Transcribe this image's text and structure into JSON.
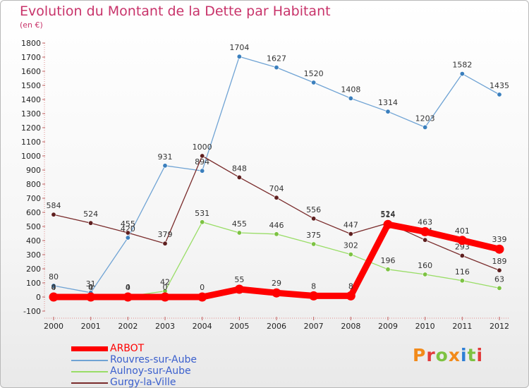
{
  "chart_data": {
    "type": "line",
    "title": "Evolution du Montant de la Dette par Habitant",
    "unit_label": "(en €)",
    "x": [
      2000,
      2001,
      2002,
      2003,
      2004,
      2005,
      2006,
      2007,
      2008,
      2009,
      2010,
      2011,
      2012
    ],
    "ylim": [
      -100,
      1800
    ],
    "yticks": [
      -100,
      0,
      100,
      200,
      300,
      400,
      500,
      600,
      700,
      800,
      900,
      1000,
      1100,
      1200,
      1300,
      1400,
      1500,
      1600,
      1700,
      1800
    ],
    "grid": false,
    "legend_position": "bottom-left",
    "series": [
      {
        "name": "Rouvres-sur-Aube",
        "color": "#6fa3d4",
        "marker_color": "#3b7fbd",
        "values": [
          80,
          31,
          420,
          931,
          894,
          1704,
          1627,
          1520,
          1408,
          1314,
          1203,
          1582,
          1435
        ],
        "labels": [
          "80",
          "31",
          "420",
          "931",
          "894",
          "1704",
          "1627",
          "1520",
          "1408",
          "1314",
          "1203",
          "1582",
          "1435"
        ]
      },
      {
        "name": "Gurgy-la-Ville",
        "color": "#7a2c2c",
        "marker_color": "#5e1f1f",
        "values": [
          584,
          524,
          455,
          379,
          1000,
          848,
          704,
          556,
          447,
          524,
          404,
          293,
          189
        ],
        "labels": [
          "584",
          "524",
          "455",
          "379",
          "1000",
          "848",
          "704",
          "556",
          "447",
          "524",
          "404",
          "293",
          "189"
        ]
      },
      {
        "name": "Aulnoy-sur-Aube",
        "color": "#99dd66",
        "marker_color": "#7cc242",
        "values": [
          4,
          4,
          4,
          42,
          531,
          455,
          446,
          375,
          302,
          196,
          160,
          116,
          63
        ],
        "labels": [
          "4",
          "4",
          "4",
          "42",
          "531",
          "455",
          "446",
          "375",
          "302",
          "196",
          "160",
          "116",
          "63"
        ]
      },
      {
        "name": "ARBOT",
        "color": "#ff0000",
        "marker_color": "#ff0000",
        "values": [
          0,
          0,
          0,
          0,
          0,
          55,
          29,
          8,
          8,
          514,
          463,
          401,
          339
        ],
        "labels": [
          "0",
          "0",
          "0",
          "0",
          "0",
          "55",
          "29",
          "8",
          "8",
          "514",
          "463",
          "401",
          "339"
        ]
      }
    ]
  },
  "legend": {
    "items": [
      {
        "name": "ARBOT",
        "color": "#ff0000",
        "text_color": "#ff0000",
        "weight": "thick"
      },
      {
        "name": "Rouvres-sur-Aube",
        "color": "#6fa3d4",
        "text_color": "#3a5fcd",
        "weight": "thin"
      },
      {
        "name": "Aulnoy-sur-Aube",
        "color": "#99dd66",
        "text_color": "#3a5fcd",
        "weight": "thin"
      },
      {
        "name": "Gurgy-la-Ville",
        "color": "#7a2c2c",
        "text_color": "#3a5fcd",
        "weight": "thin"
      }
    ]
  },
  "logo": {
    "text": "Proxiti",
    "letters": [
      "P",
      "r",
      "o",
      "x",
      "i",
      "t",
      "i"
    ]
  }
}
